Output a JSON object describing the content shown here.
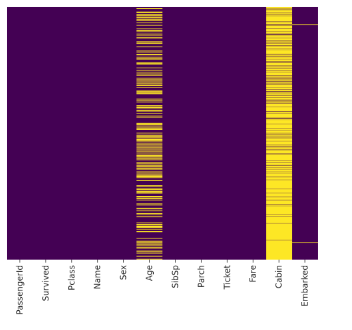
{
  "chart_data": {
    "type": "heatmap",
    "title": "",
    "xlabel": "",
    "ylabel": "",
    "columns": [
      "PassengerId",
      "Survived",
      "Pclass",
      "Name",
      "Sex",
      "Age",
      "SibSp",
      "Parch",
      "Ticket",
      "Fare",
      "Cabin",
      "Embarked"
    ],
    "row_count": 891,
    "value_meaning": "missing value (null)",
    "colors": {
      "present": "#440154",
      "missing": "#fde725"
    },
    "colorbar": false,
    "yticks_visible": false,
    "missing_rows": {
      "Age": [
        5,
        17,
        19,
        26,
        28,
        29,
        31,
        32,
        36,
        42,
        45,
        46,
        47,
        48,
        55,
        64,
        65,
        76,
        77,
        82,
        87,
        95,
        101,
        107,
        109,
        121,
        126,
        128,
        140,
        154,
        158,
        159,
        166,
        168,
        176,
        180,
        181,
        185,
        186,
        196,
        198,
        201,
        214,
        223,
        229,
        235,
        240,
        241,
        250,
        256,
        260,
        264,
        270,
        274,
        277,
        284,
        295,
        298,
        300,
        301,
        303,
        304,
        306,
        324,
        330,
        334,
        335,
        347,
        351,
        354,
        358,
        359,
        364,
        367,
        368,
        375,
        384,
        388,
        409,
        410,
        411,
        413,
        415,
        420,
        425,
        428,
        431,
        444,
        451,
        454,
        457,
        459,
        464,
        466,
        468,
        470,
        475,
        481,
        485,
        490,
        495,
        497,
        502,
        507,
        511,
        517,
        522,
        524,
        527,
        531,
        533,
        538,
        547,
        552,
        557,
        560,
        563,
        564,
        568,
        573,
        578,
        584,
        589,
        593,
        596,
        598,
        601,
        602,
        611,
        612,
        613,
        629,
        633,
        639,
        643,
        648,
        650,
        653,
        656,
        667,
        669,
        674,
        680,
        692,
        697,
        709,
        711,
        718,
        727,
        732,
        738,
        739,
        740,
        760,
        766,
        768,
        773,
        776,
        778,
        783,
        790,
        792,
        793,
        815,
        825,
        826,
        828,
        832,
        837,
        839,
        846,
        849,
        859,
        863,
        868,
        878,
        888
      ],
      "Cabin": [
        0,
        2,
        4,
        5,
        7,
        8,
        9,
        12,
        13,
        14,
        15,
        16,
        17,
        18,
        19,
        20,
        22,
        24,
        25,
        26,
        28,
        29,
        30,
        32,
        33,
        34,
        35,
        36,
        37,
        38,
        39,
        40,
        41,
        42,
        43,
        44,
        45,
        46,
        47,
        48,
        49,
        50,
        51,
        53,
        56,
        57,
        58,
        59,
        60,
        63,
        64,
        65,
        67,
        68,
        69,
        70,
        71,
        72,
        73,
        74,
        76,
        77,
        78,
        79,
        80,
        81,
        82,
        83,
        84,
        85,
        86,
        87,
        89,
        90,
        91,
        93,
        94,
        95,
        98,
        99,
        100,
        101,
        103,
        104,
        105,
        106,
        107,
        108,
        109,
        111,
        112,
        113,
        114,
        115,
        116,
        117,
        119,
        120,
        121,
        122,
        125,
        126,
        127,
        129,
        130,
        131,
        132,
        133,
        134,
        135,
        138,
        140,
        141,
        142,
        143,
        144,
        145,
        146,
        147,
        149,
        150,
        152,
        153,
        154,
        155,
        156,
        157,
        158,
        159,
        160,
        161,
        162,
        163,
        164,
        165,
        167,
        168,
        169,
        171,
        172,
        173,
        175,
        176,
        178,
        179,
        180,
        181,
        182,
        184,
        186,
        187,
        188,
        189,
        190,
        191,
        192,
        196,
        197,
        198,
        199,
        200,
        201,
        202,
        203,
        204,
        206,
        207,
        208,
        210,
        211,
        212,
        213,
        214,
        216,
        217,
        219,
        220,
        221,
        222,
        223,
        225,
        226,
        227,
        228,
        229,
        231,
        232,
        233,
        234,
        235,
        236,
        237,
        238,
        239,
        240,
        241,
        243,
        244,
        246,
        247,
        249,
        250,
        253,
        254,
        255,
        256,
        258,
        259,
        260,
        261,
        264,
        265,
        266,
        267,
        270,
        271,
        272,
        274,
        276,
        277,
        278,
        279,
        280,
        281,
        282,
        283,
        285,
        286,
        287,
        288,
        289,
        290,
        293,
        294,
        295,
        296,
        300,
        301,
        302,
        304,
        306,
        308,
        312,
        313,
        314,
        315,
        316,
        317,
        319,
        320,
        321,
        322,
        323,
        324,
        325,
        326,
        328,
        329,
        330,
        333,
        334,
        335,
        337,
        338,
        339,
        341,
        342,
        343,
        344,
        345,
        346,
        347,
        348,
        349,
        350,
        351,
        353,
        354,
        355,
        356,
        357,
        358,
        359,
        360,
        361,
        362,
        363,
        364,
        365,
        366,
        367,
        368,
        371,
        372,
        373,
        374,
        375,
        376,
        378,
        379,
        380,
        381,
        382,
        383,
        384,
        385,
        386,
        387,
        388,
        389,
        391,
        392,
        395,
        396,
        398,
        399,
        400,
        401,
        402,
        403,
        404,
        405,
        406,
        407,
        408,
        409,
        410,
        411,
        413,
        414,
        415,
        416,
        417,
        418,
        419,
        420,
        421,
        422,
        423,
        424,
        425,
        426,
        427,
        428,
        429,
        431,
        432,
        433,
        434,
        436,
        437,
        438,
        439,
        440,
        441,
        442,
        443,
        444,
        446,
        447,
        448,
        450,
        451,
        453,
        454,
        455,
        456,
        458,
        459,
        461,
        462,
        464,
        465,
        466,
        467,
        468,
        469,
        470,
        471,
        472,
        474,
        475,
        476,
        477,
        478,
        479,
        480,
        481,
        482,
        483,
        484,
        485,
        487,
        488,
        489,
        490,
        491,
        493,
        494,
        495,
        497,
        498,
        499,
        500,
        502,
        503,
        504,
        506,
        507,
        508,
        509,
        510,
        511,
        512,
        513,
        514,
        515,
        517,
        518,
        519,
        521,
        522,
        523,
        524,
        525,
        526,
        527,
        528,
        529,
        530,
        531,
        532,
        533,
        534,
        535,
        536,
        537,
        538,
        539,
        541,
        542,
        543,
        544,
        545,
        546,
        547,
        549,
        550,
        551,
        552,
        553,
        554,
        555,
        556,
        557,
        560,
        561,
        562,
        563,
        564,
        565,
        566,
        568,
        570,
        571,
        572,
        574,
        575,
        576,
        577,
        578,
        579,
        580,
        581,
        583,
        584,
        586,
        587,
        588,
        589,
        590,
        591,
        592,
        593,
        594,
        595,
        596,
        597,
        598,
        600,
        601,
        602,
        603,
        604,
        605,
        606,
        607,
        608,
        610,
        611,
        612,
        613,
        614,
        615,
        616,
        617,
        618,
        619,
        620,
        621,
        622,
        623,
        624,
        625,
        626,
        627,
        628,
        629,
        630,
        631,
        632,
        633,
        634,
        635,
        636,
        637,
        638,
        639,
        640,
        641,
        643,
        644,
        645,
        646,
        647,
        648,
        649,
        650,
        651,
        652,
        653,
        654,
        656,
        657,
        658,
        659,
        660,
        661,
        662,
        663,
        664,
        665,
        666,
        667,
        668,
        670,
        671,
        672,
        673,
        674,
        675,
        676,
        677,
        678,
        679,
        680,
        682,
        683,
        684,
        685,
        686,
        687,
        688,
        689,
        690,
        691,
        692,
        693,
        694,
        695,
        697,
        698,
        699,
        700,
        701,
        703,
        704,
        705,
        706,
        707,
        708,
        709,
        710,
        711,
        712,
        713,
        714,
        715,
        716,
        717,
        718,
        719,
        720,
        721,
        722,
        723,
        724,
        725,
        726,
        727,
        728,
        729,
        731,
        732,
        733,
        734,
        735,
        736,
        738,
        739,
        740,
        741,
        742,
        743,
        744,
        745,
        746,
        747,
        748,
        749,
        750,
        751,
        752,
        753,
        754,
        755,
        756,
        757,
        758,
        759,
        760,
        761,
        762,
        764,
        765,
        766,
        767,
        768,
        769,
        770,
        771,
        772,
        773,
        774,
        775,
        776,
        777,
        778,
        779,
        780,
        781,
        782,
        783,
        784,
        785,
        786,
        787,
        788,
        789,
        790,
        791,
        792,
        793,
        794,
        795,
        796,
        797,
        798,
        799,
        800,
        801,
        802,
        803,
        804,
        805,
        806,
        807,
        808,
        809,
        810,
        811,
        812,
        813,
        814,
        815,
        816,
        817,
        818,
        819,
        820,
        822,
        823,
        824,
        825,
        826,
        827,
        828,
        829,
        830,
        831,
        832,
        833,
        834,
        835,
        836,
        837,
        838,
        839,
        840,
        841,
        842,
        843,
        844,
        845,
        846,
        847,
        848,
        849,
        850,
        851,
        852,
        853,
        854,
        855,
        856,
        857,
        858,
        859,
        860,
        861,
        862,
        863,
        864,
        865,
        866,
        867,
        868,
        869,
        870,
        871,
        872,
        873,
        874,
        875,
        876,
        877,
        878,
        879,
        880,
        881,
        882,
        883,
        884,
        885,
        886,
        887,
        888,
        889,
        890
      ],
      "Embarked": [
        61,
        829
      ]
    }
  }
}
